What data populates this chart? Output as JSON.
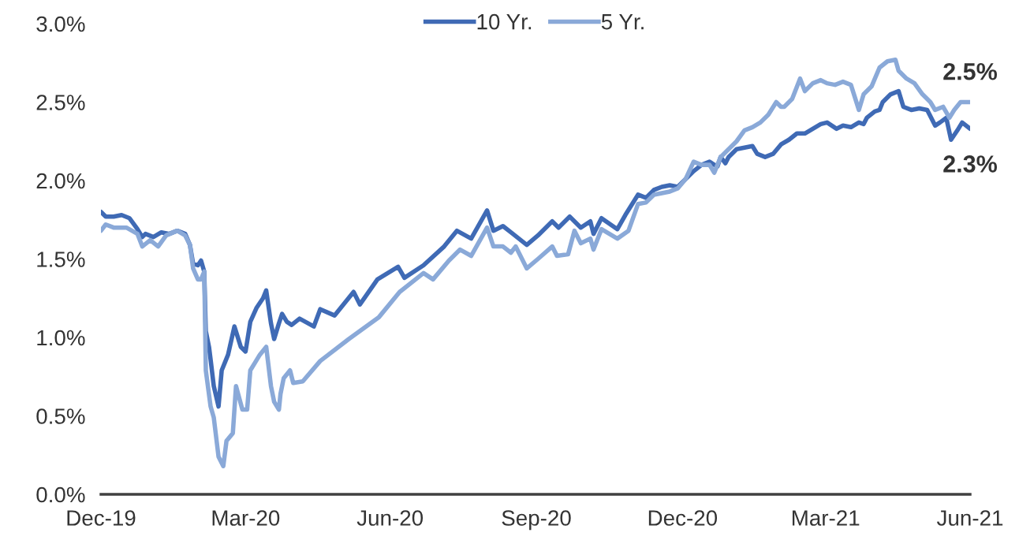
{
  "chart_data": {
    "type": "line",
    "xlim": [
      "2019-12-31",
      "2021-06-30"
    ],
    "xticks": [
      {
        "value": "2019-12-31",
        "label": "Dec-19"
      },
      {
        "value": "2020-03-31",
        "label": "Mar-20"
      },
      {
        "value": "2020-06-30",
        "label": "Jun-20"
      },
      {
        "value": "2020-09-30",
        "label": "Sep-20"
      },
      {
        "value": "2020-12-31",
        "label": "Dec-20"
      },
      {
        "value": "2021-03-31",
        "label": "Mar-21"
      },
      {
        "value": "2021-06-30",
        "label": "Jun-21"
      }
    ],
    "ylim": [
      0,
      3.0
    ],
    "yticks": [
      {
        "value": 0,
        "label": "0.0%"
      },
      {
        "value": 0.5,
        "label": "0.5%"
      },
      {
        "value": 1.0,
        "label": "1.0%"
      },
      {
        "value": 1.5,
        "label": "1.5%"
      },
      {
        "value": 2.0,
        "label": "2.0%"
      },
      {
        "value": 2.5,
        "label": "2.5%"
      },
      {
        "value": 3.0,
        "label": "3.0%"
      }
    ],
    "grid": false,
    "legend": "top",
    "marker": "none",
    "line_style": "solid",
    "annotations": [
      {
        "text": "2.5%",
        "x": "2021-06-30",
        "y": 2.5
      },
      {
        "text": "2.3%",
        "x": "2021-06-30",
        "y": 2.33
      }
    ],
    "series": [
      {
        "name": "10 Yr.",
        "color": "#3f6ab5",
        "x": [
          "2019-12-31",
          "2020-01-03",
          "2020-01-08",
          "2020-01-13",
          "2020-01-18",
          "2020-01-23",
          "2020-01-26",
          "2020-01-28",
          "2020-02-02",
          "2020-02-07",
          "2020-02-12",
          "2020-02-17",
          "2020-02-22",
          "2020-02-25",
          "2020-02-27",
          "2020-03-01",
          "2020-03-03",
          "2020-03-05",
          "2020-03-06",
          "2020-03-08",
          "2020-03-09",
          "2020-03-11",
          "2020-03-14",
          "2020-03-16",
          "2020-03-20",
          "2020-03-24",
          "2020-03-28",
          "2020-03-31",
          "2020-04-03",
          "2020-04-07",
          "2020-04-11",
          "2020-04-13",
          "2020-04-16",
          "2020-04-18",
          "2020-04-21",
          "2020-04-23",
          "2020-04-26",
          "2020-04-29",
          "2020-05-04",
          "2020-05-13",
          "2020-05-17",
          "2020-05-26",
          "2020-06-07",
          "2020-06-11",
          "2020-06-22",
          "2020-07-05",
          "2020-07-09",
          "2020-07-21",
          "2020-08-03",
          "2020-08-11",
          "2020-08-20",
          "2020-08-30",
          "2020-09-03",
          "2020-09-09",
          "2020-09-14",
          "2020-09-24",
          "2020-10-01",
          "2020-10-10",
          "2020-10-14",
          "2020-10-21",
          "2020-10-28",
          "2020-11-03",
          "2020-11-05",
          "2020-11-10",
          "2020-11-20",
          "2020-11-25",
          "2020-12-03",
          "2020-12-08",
          "2020-12-13",
          "2020-12-18",
          "2020-12-23",
          "2020-12-28",
          "2021-01-02",
          "2021-01-07",
          "2021-01-12",
          "2021-01-17",
          "2021-01-20",
          "2021-01-22",
          "2021-01-24",
          "2021-01-27",
          "2021-01-29",
          "2021-02-03",
          "2021-02-08",
          "2021-02-13",
          "2021-02-16",
          "2021-02-21",
          "2021-02-26",
          "2021-03-03",
          "2021-03-08",
          "2021-03-13",
          "2021-03-18",
          "2021-03-23",
          "2021-03-28",
          "2021-04-01",
          "2021-04-04",
          "2021-04-07",
          "2021-04-11",
          "2021-04-16",
          "2021-04-21",
          "2021-04-24",
          "2021-04-26",
          "2021-05-01",
          "2021-05-04",
          "2021-05-06",
          "2021-05-11",
          "2021-05-16",
          "2021-05-19",
          "2021-05-24",
          "2021-05-29",
          "2021-06-03",
          "2021-06-08",
          "2021-06-11",
          "2021-06-15",
          "2021-06-18",
          "2021-06-22",
          "2021-06-25",
          "2021-06-30"
        ],
        "values": [
          1.8,
          1.77,
          1.77,
          1.78,
          1.76,
          1.69,
          1.64,
          1.66,
          1.64,
          1.67,
          1.66,
          1.68,
          1.66,
          1.59,
          1.47,
          1.46,
          1.49,
          1.42,
          1.04,
          0.94,
          0.86,
          0.69,
          0.56,
          0.79,
          0.89,
          1.07,
          0.94,
          0.91,
          1.1,
          1.19,
          1.25,
          1.3,
          1.09,
          0.99,
          1.09,
          1.15,
          1.1,
          1.08,
          1.12,
          1.07,
          1.18,
          1.14,
          1.29,
          1.21,
          1.37,
          1.45,
          1.38,
          1.46,
          1.58,
          1.68,
          1.63,
          1.81,
          1.68,
          1.71,
          1.67,
          1.59,
          1.65,
          1.74,
          1.7,
          1.77,
          1.7,
          1.74,
          1.66,
          1.76,
          1.69,
          1.78,
          1.91,
          1.89,
          1.94,
          1.96,
          1.97,
          1.96,
          2.01,
          2.06,
          2.1,
          2.12,
          2.1,
          2.09,
          2.15,
          2.11,
          2.15,
          2.2,
          2.21,
          2.22,
          2.17,
          2.15,
          2.17,
          2.23,
          2.26,
          2.3,
          2.3,
          2.33,
          2.36,
          2.37,
          2.35,
          2.33,
          2.35,
          2.34,
          2.37,
          2.36,
          2.4,
          2.44,
          2.45,
          2.5,
          2.55,
          2.57,
          2.47,
          2.45,
          2.46,
          2.45,
          2.35,
          2.37,
          2.4,
          2.26,
          2.32,
          2.37,
          2.33
        ]
      },
      {
        "name": "5 Yr.",
        "color": "#8aa9d8",
        "x": [
          "2019-12-31",
          "2020-01-03",
          "2020-01-08",
          "2020-01-16",
          "2020-01-23",
          "2020-01-26",
          "2020-01-31",
          "2020-02-05",
          "2020-02-10",
          "2020-02-17",
          "2020-02-22",
          "2020-02-25",
          "2020-02-27",
          "2020-03-01",
          "2020-03-03",
          "2020-03-05",
          "2020-03-06",
          "2020-03-09",
          "2020-03-11",
          "2020-03-14",
          "2020-03-17",
          "2020-03-19",
          "2020-03-23",
          "2020-03-25",
          "2020-03-29",
          "2020-04-01",
          "2020-04-03",
          "2020-04-06",
          "2020-04-09",
          "2020-04-13",
          "2020-04-16",
          "2020-04-18",
          "2020-04-21",
          "2020-04-22",
          "2020-04-24",
          "2020-04-28",
          "2020-04-30",
          "2020-05-06",
          "2020-05-17",
          "2020-06-04",
          "2020-06-23",
          "2020-07-06",
          "2020-07-21",
          "2020-07-27",
          "2020-08-06",
          "2020-08-13",
          "2020-08-20",
          "2020-08-30",
          "2020-09-03",
          "2020-09-09",
          "2020-09-14",
          "2020-09-17",
          "2020-09-24",
          "2020-10-01",
          "2020-10-10",
          "2020-10-13",
          "2020-10-20",
          "2020-10-24",
          "2020-10-28",
          "2020-11-03",
          "2020-11-05",
          "2020-11-10",
          "2020-11-20",
          "2020-11-27",
          "2020-12-03",
          "2020-12-08",
          "2020-12-13",
          "2020-12-18",
          "2020-12-23",
          "2020-12-28",
          "2021-01-02",
          "2021-01-07",
          "2021-01-12",
          "2021-01-17",
          "2021-01-20",
          "2021-01-24",
          "2021-01-29",
          "2021-02-03",
          "2021-02-08",
          "2021-02-13",
          "2021-02-18",
          "2021-02-23",
          "2021-02-28",
          "2021-03-03",
          "2021-03-05",
          "2021-03-10",
          "2021-03-15",
          "2021-03-18",
          "2021-03-23",
          "2021-03-28",
          "2021-04-01",
          "2021-04-06",
          "2021-04-11",
          "2021-04-16",
          "2021-04-21",
          "2021-04-24",
          "2021-04-29",
          "2021-05-04",
          "2021-05-09",
          "2021-05-14",
          "2021-05-16",
          "2021-05-21",
          "2021-05-26",
          "2021-05-31",
          "2021-06-05",
          "2021-06-08",
          "2021-06-13",
          "2021-06-17",
          "2021-06-20",
          "2021-06-24",
          "2021-06-27",
          "2021-06-30"
        ],
        "values": [
          1.68,
          1.72,
          1.7,
          1.7,
          1.66,
          1.58,
          1.62,
          1.58,
          1.65,
          1.68,
          1.65,
          1.59,
          1.44,
          1.37,
          1.37,
          1.42,
          0.79,
          0.56,
          0.49,
          0.24,
          0.18,
          0.34,
          0.39,
          0.69,
          0.54,
          0.54,
          0.79,
          0.84,
          0.89,
          0.94,
          0.69,
          0.59,
          0.54,
          0.64,
          0.74,
          0.79,
          0.71,
          0.72,
          0.85,
          0.99,
          1.13,
          1.29,
          1.41,
          1.37,
          1.49,
          1.56,
          1.52,
          1.7,
          1.58,
          1.58,
          1.54,
          1.58,
          1.44,
          1.5,
          1.58,
          1.52,
          1.53,
          1.68,
          1.6,
          1.63,
          1.56,
          1.69,
          1.63,
          1.68,
          1.85,
          1.86,
          1.91,
          1.92,
          1.93,
          1.95,
          2.01,
          2.12,
          2.1,
          2.1,
          2.05,
          2.15,
          2.2,
          2.25,
          2.32,
          2.34,
          2.37,
          2.42,
          2.5,
          2.47,
          2.47,
          2.52,
          2.65,
          2.57,
          2.62,
          2.64,
          2.62,
          2.61,
          2.63,
          2.61,
          2.45,
          2.55,
          2.6,
          2.72,
          2.76,
          2.77,
          2.7,
          2.65,
          2.62,
          2.55,
          2.5,
          2.45,
          2.47,
          2.4,
          2.45,
          2.5,
          2.5,
          2.5
        ]
      }
    ]
  }
}
